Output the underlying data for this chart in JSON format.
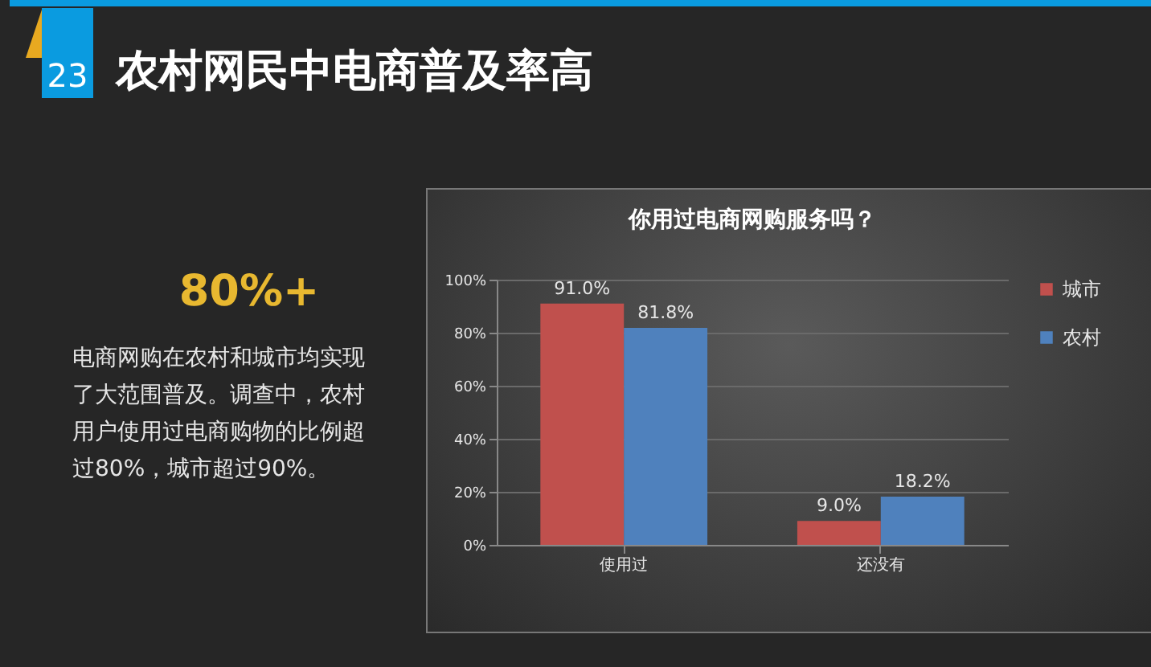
{
  "chart_data": {
    "type": "bar",
    "title": "你用过电商网购服务吗？",
    "annotations": [
      "23",
      "农村网民中电商普及率高",
      "80%+",
      "电商网购在农村和城市均实现了大范围普及。调查中，农村用户使用过电商购物的比例超过80%，城市超过90%。"
    ],
    "categories": [
      "使用过",
      "还没有"
    ],
    "series": [
      {
        "name": "城市",
        "color": "#c0504d",
        "values": [
          91.0,
          9.0
        ],
        "value_labels": [
          "91.0%",
          "9.0%"
        ]
      },
      {
        "name": "农村",
        "color": "#4f81bd",
        "values": [
          81.8,
          18.2
        ],
        "value_labels": [
          "81.8%",
          "18.2%"
        ]
      }
    ],
    "ylim": [
      0,
      100
    ],
    "yticks": [
      {
        "value": 0,
        "label": "0%"
      },
      {
        "value": 20,
        "label": "20%"
      },
      {
        "value": 40,
        "label": "40%"
      },
      {
        "value": 60,
        "label": "60%"
      },
      {
        "value": 80,
        "label": "80%"
      },
      {
        "value": 100,
        "label": "100%"
      }
    ],
    "grid": "y",
    "legend": "right"
  }
}
